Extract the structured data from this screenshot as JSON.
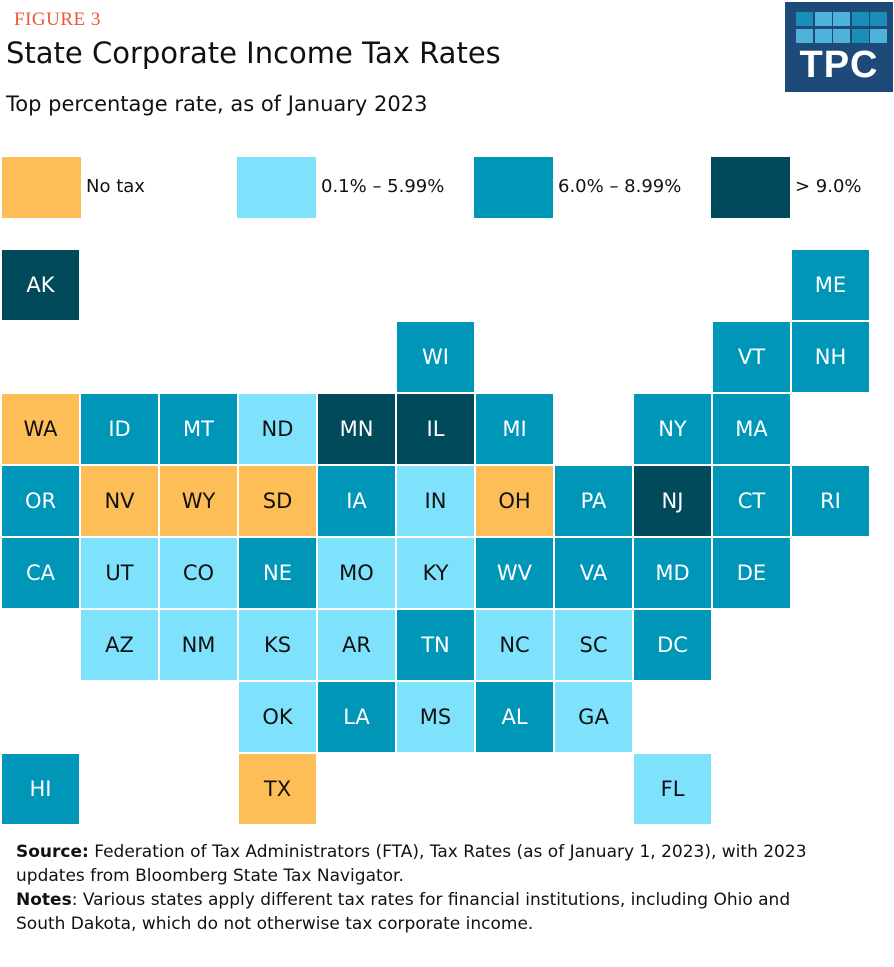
{
  "figure_label": "FIGURE 3",
  "logo": "TPC",
  "chart_data": {
    "type": "tile-map",
    "title": "State Corporate Income Tax Rates",
    "subtitle": "Top percentage rate, as of January 2023",
    "legend": [
      {
        "key": "none",
        "label": "No tax",
        "color": "#FDBE57",
        "text_color": "#111111"
      },
      {
        "key": "low",
        "label": "0.1% – 5.99%",
        "color": "#7FE2FD",
        "text_color": "#111111"
      },
      {
        "key": "mid",
        "label": "6.0% – 8.99%",
        "color": "#0096B8",
        "text_color": "#FFFFFF"
      },
      {
        "key": "high",
        "label": "> 9.0%",
        "color": "#004A5C",
        "text_color": "#FFFFFF"
      }
    ],
    "states": [
      {
        "abbr": "AK",
        "row": 0,
        "col": 0,
        "category": "high"
      },
      {
        "abbr": "ME",
        "row": 0,
        "col": 10,
        "category": "mid"
      },
      {
        "abbr": "WI",
        "row": 1,
        "col": 5,
        "category": "mid"
      },
      {
        "abbr": "VT",
        "row": 1,
        "col": 9,
        "category": "mid"
      },
      {
        "abbr": "NH",
        "row": 1,
        "col": 10,
        "category": "mid"
      },
      {
        "abbr": "WA",
        "row": 2,
        "col": 0,
        "category": "none"
      },
      {
        "abbr": "ID",
        "row": 2,
        "col": 1,
        "category": "mid"
      },
      {
        "abbr": "MT",
        "row": 2,
        "col": 2,
        "category": "mid"
      },
      {
        "abbr": "ND",
        "row": 2,
        "col": 3,
        "category": "low"
      },
      {
        "abbr": "MN",
        "row": 2,
        "col": 4,
        "category": "high"
      },
      {
        "abbr": "IL",
        "row": 2,
        "col": 5,
        "category": "high"
      },
      {
        "abbr": "MI",
        "row": 2,
        "col": 6,
        "category": "mid"
      },
      {
        "abbr": "NY",
        "row": 2,
        "col": 8,
        "category": "mid"
      },
      {
        "abbr": "MA",
        "row": 2,
        "col": 9,
        "category": "mid"
      },
      {
        "abbr": "OR",
        "row": 3,
        "col": 0,
        "category": "mid"
      },
      {
        "abbr": "NV",
        "row": 3,
        "col": 1,
        "category": "none"
      },
      {
        "abbr": "WY",
        "row": 3,
        "col": 2,
        "category": "none"
      },
      {
        "abbr": "SD",
        "row": 3,
        "col": 3,
        "category": "none"
      },
      {
        "abbr": "IA",
        "row": 3,
        "col": 4,
        "category": "mid"
      },
      {
        "abbr": "IN",
        "row": 3,
        "col": 5,
        "category": "low"
      },
      {
        "abbr": "OH",
        "row": 3,
        "col": 6,
        "category": "none"
      },
      {
        "abbr": "PA",
        "row": 3,
        "col": 7,
        "category": "mid"
      },
      {
        "abbr": "NJ",
        "row": 3,
        "col": 8,
        "category": "high"
      },
      {
        "abbr": "CT",
        "row": 3,
        "col": 9,
        "category": "mid"
      },
      {
        "abbr": "RI",
        "row": 3,
        "col": 10,
        "category": "mid"
      },
      {
        "abbr": "CA",
        "row": 4,
        "col": 0,
        "category": "mid"
      },
      {
        "abbr": "UT",
        "row": 4,
        "col": 1,
        "category": "low"
      },
      {
        "abbr": "CO",
        "row": 4,
        "col": 2,
        "category": "low"
      },
      {
        "abbr": "NE",
        "row": 4,
        "col": 3,
        "category": "mid"
      },
      {
        "abbr": "MO",
        "row": 4,
        "col": 4,
        "category": "low"
      },
      {
        "abbr": "KY",
        "row": 4,
        "col": 5,
        "category": "low"
      },
      {
        "abbr": "WV",
        "row": 4,
        "col": 6,
        "category": "mid"
      },
      {
        "abbr": "VA",
        "row": 4,
        "col": 7,
        "category": "mid"
      },
      {
        "abbr": "MD",
        "row": 4,
        "col": 8,
        "category": "mid"
      },
      {
        "abbr": "DE",
        "row": 4,
        "col": 9,
        "category": "mid"
      },
      {
        "abbr": "AZ",
        "row": 5,
        "col": 1,
        "category": "low"
      },
      {
        "abbr": "NM",
        "row": 5,
        "col": 2,
        "category": "low"
      },
      {
        "abbr": "KS",
        "row": 5,
        "col": 3,
        "category": "low"
      },
      {
        "abbr": "AR",
        "row": 5,
        "col": 4,
        "category": "low"
      },
      {
        "abbr": "TN",
        "row": 5,
        "col": 5,
        "category": "mid"
      },
      {
        "abbr": "NC",
        "row": 5,
        "col": 6,
        "category": "low"
      },
      {
        "abbr": "SC",
        "row": 5,
        "col": 7,
        "category": "low"
      },
      {
        "abbr": "DC",
        "row": 5,
        "col": 8,
        "category": "mid"
      },
      {
        "abbr": "OK",
        "row": 6,
        "col": 3,
        "category": "low"
      },
      {
        "abbr": "LA",
        "row": 6,
        "col": 4,
        "category": "mid"
      },
      {
        "abbr": "MS",
        "row": 6,
        "col": 5,
        "category": "low"
      },
      {
        "abbr": "AL",
        "row": 6,
        "col": 6,
        "category": "mid"
      },
      {
        "abbr": "GA",
        "row": 6,
        "col": 7,
        "category": "low"
      },
      {
        "abbr": "HI",
        "row": 7,
        "col": 0,
        "category": "mid"
      },
      {
        "abbr": "TX",
        "row": 7,
        "col": 3,
        "category": "none"
      },
      {
        "abbr": "FL",
        "row": 7,
        "col": 8,
        "category": "low"
      }
    ]
  },
  "notes": {
    "source_label": "Source:",
    "source_text": " Federation of Tax Administrators (FTA), Tax Rates (as of January 1, 2023), with 2023 updates from Bloomberg State Tax Navigator.",
    "notes_label": "Notes",
    "notes_text": ": Various states apply different tax rates for financial institutions, including Ohio and South Dakota, which do not otherwise tax corporate income."
  }
}
